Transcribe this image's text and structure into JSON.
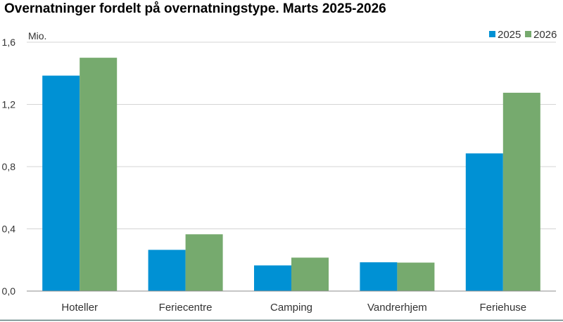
{
  "chart_data": {
    "type": "bar",
    "title": "Overnatninger fordelt på overnatningstype. Marts 2025-2026",
    "unit": "Mio.",
    "categories": [
      "Hoteller",
      "Feriecentre",
      "Camping",
      "Vandrerhjem",
      "Feriehuse"
    ],
    "series": [
      {
        "name": "2025",
        "color": "#0091d4",
        "values": [
          1.385,
          0.265,
          0.165,
          0.185,
          0.885
        ]
      },
      {
        "name": "2026",
        "color": "#76aa6e",
        "values": [
          1.5,
          0.365,
          0.215,
          0.183,
          1.275
        ]
      }
    ],
    "yticks": [
      "0,0",
      "0,4",
      "0,8",
      "1,2",
      "1,6"
    ],
    "ylim": [
      0,
      1.6
    ],
    "grid": true,
    "legend_position": "top-right"
  }
}
